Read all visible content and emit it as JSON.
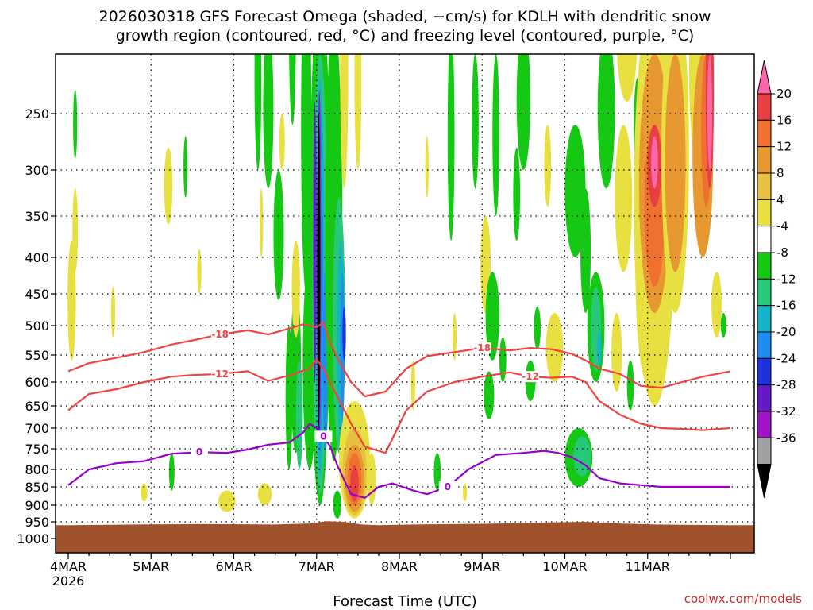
{
  "chart_data": {
    "type": "heatmap",
    "title_line1": "2026030318 GFS Forecast Omega (shaded, −cm/s) for KDLH with dendritic snow",
    "title_line2": "growth region (contoured, red, °C) and freezing level (contoured, purple, °C)",
    "xlabel": "Forecast Time (UTC)",
    "credit": "coolwx.com/models",
    "y_axis": {
      "scale": "pressure (hPa), reversed",
      "ticks": [
        250,
        300,
        350,
        400,
        450,
        500,
        550,
        600,
        650,
        700,
        750,
        800,
        850,
        900,
        950,
        1000
      ],
      "range": [
        1000,
        200
      ]
    },
    "x_axis": {
      "range_hours": [
        0,
        192
      ],
      "ticks": [
        {
          "hour": 0,
          "label": "4MAR",
          "sublabel": "2026"
        },
        {
          "hour": 24,
          "label": "5MAR"
        },
        {
          "hour": 48,
          "label": "6MAR"
        },
        {
          "hour": 72,
          "label": "7MAR"
        },
        {
          "hour": 96,
          "label": "8MAR"
        },
        {
          "hour": 120,
          "label": "9MAR"
        },
        {
          "hour": 144,
          "label": "10MAR"
        },
        {
          "hour": 168,
          "label": "11MAR"
        }
      ]
    },
    "colorbar": {
      "labels": [
        "20",
        "16",
        "12",
        "8",
        "4",
        "-4",
        "-8",
        "-12",
        "-16",
        "-20",
        "-24",
        "-28",
        "-32",
        "-36"
      ],
      "colors": [
        "#ff66aa",
        "#e84040",
        "#f07030",
        "#e89830",
        "#e8c040",
        "#e8e040",
        "#ffffff",
        "#14c814",
        "#28c878",
        "#14b4c8",
        "#1e8cf0",
        "#1e32dc",
        "#6418c8",
        "#a014c8",
        "#a0a0a0",
        "#000000"
      ]
    },
    "surface_color": "#a0522d",
    "contours": [
      {
        "name": "dgz_top",
        "label": "-18",
        "color": "#ee4444",
        "x": [
          0,
          6,
          14,
          22,
          30,
          36,
          44,
          52,
          58,
          64,
          68,
          72,
          74,
          76,
          78,
          80,
          82,
          86,
          92,
          98,
          104,
          112,
          120,
          128,
          134,
          140,
          146,
          150,
          154,
          160,
          166,
          172,
          178,
          184,
          192
        ],
        "y": [
          580,
          565,
          555,
          545,
          532,
          525,
          515,
          508,
          515,
          505,
          498,
          503,
          495,
          530,
          555,
          578,
          600,
          630,
          620,
          575,
          552,
          545,
          538,
          542,
          538,
          540,
          548,
          560,
          575,
          585,
          608,
          612,
          600,
          590,
          580
        ]
      },
      {
        "name": "dgz_bottom",
        "label": "-12",
        "color": "#ee4444",
        "x": [
          0,
          6,
          14,
          22,
          30,
          36,
          44,
          52,
          58,
          64,
          70,
          72,
          74,
          78,
          82,
          86,
          92,
          98,
          104,
          112,
          120,
          128,
          134,
          140,
          146,
          150,
          154,
          160,
          166,
          172,
          178,
          184,
          192
        ],
        "y": [
          660,
          625,
          615,
          600,
          590,
          587,
          585,
          580,
          598,
          588,
          575,
          558,
          575,
          630,
          690,
          745,
          760,
          660,
          620,
          600,
          590,
          582,
          590,
          592,
          590,
          600,
          640,
          670,
          690,
          700,
          702,
          705,
          700
        ]
      },
      {
        "name": "freezing_level",
        "label": "0",
        "color": "#9900cc",
        "x": [
          0,
          6,
          14,
          22,
          30,
          38,
          46,
          52,
          58,
          64,
          68,
          70,
          72,
          74,
          76,
          78,
          80,
          82,
          86,
          90,
          94,
          100,
          104,
          110,
          116,
          124,
          132,
          138,
          142,
          146,
          150,
          154,
          160,
          166,
          172,
          178,
          184,
          192
        ],
        "y": [
          845,
          800,
          785,
          780,
          762,
          758,
          760,
          752,
          740,
          735,
          712,
          690,
          700,
          720,
          745,
          790,
          830,
          870,
          880,
          850,
          840,
          860,
          870,
          850,
          800,
          765,
          760,
          755,
          760,
          770,
          790,
          825,
          840,
          845,
          850,
          850,
          850,
          850
        ]
      }
    ],
    "features": [
      {
        "name": "strong_upward_core",
        "hours": [
          71,
          79
        ],
        "levels": [
          250,
          900
        ],
        "peak_value": -36
      },
      {
        "name": "warm_rising_plume",
        "hours": [
          80,
          88
        ],
        "levels": [
          650,
          950
        ],
        "peak_value": 16
      },
      {
        "name": "upper_sinking_region",
        "hours": [
          160,
          190
        ],
        "levels": [
          200,
          650
        ],
        "peak_value": 20
      }
    ]
  }
}
